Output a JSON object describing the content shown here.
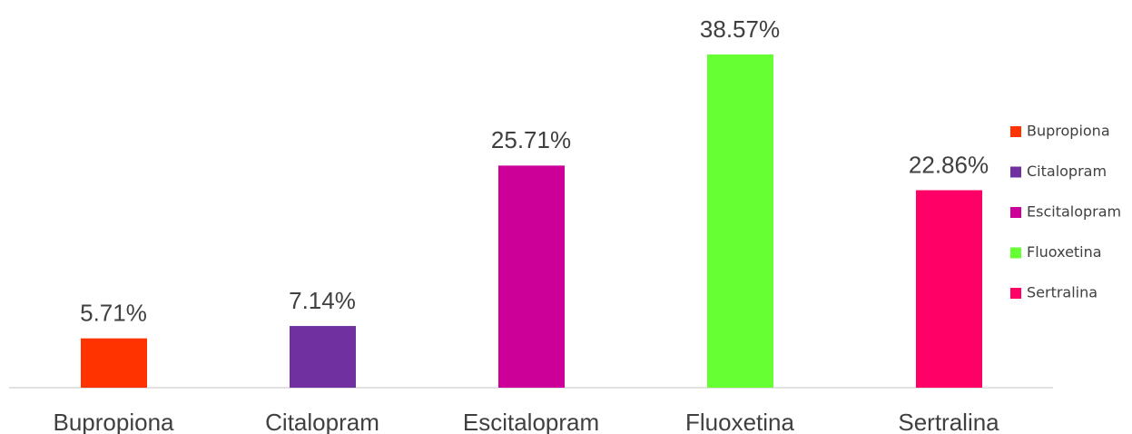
{
  "chart_data": {
    "type": "bar",
    "categories": [
      "Bupropiona",
      "Citalopram",
      "Escitalopram",
      "Fluoxetina",
      "Sertralina"
    ],
    "values": [
      5.71,
      7.14,
      25.71,
      38.57,
      22.86
    ],
    "value_labels": [
      "5.71%",
      "7.14%",
      "25.71%",
      "38.57%",
      "22.86%"
    ],
    "colors": [
      "#ff3300",
      "#7030a0",
      "#cc0099",
      "#66ff33",
      "#ff0066"
    ],
    "legend": "right"
  }
}
